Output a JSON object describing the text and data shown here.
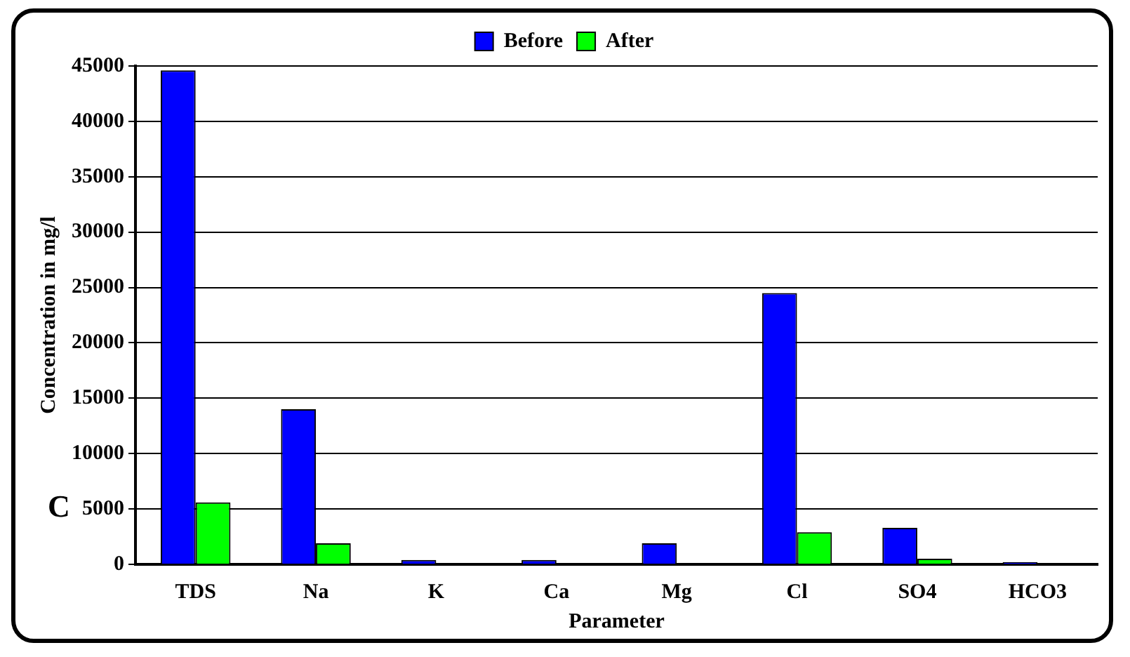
{
  "chart_data": {
    "type": "bar",
    "xlabel": "Parameter",
    "ylabel": "Concentration in mg/l",
    "annotations": [
      "C"
    ],
    "categories": [
      "TDS",
      "Na",
      "K",
      "Ca",
      "Mg",
      "Cl",
      "SO4",
      "HCO3"
    ],
    "series": [
      {
        "name": "Before",
        "color": "#0000ff",
        "values": [
          44600,
          14000,
          400,
          400,
          1900,
          24500,
          3300,
          200
        ]
      },
      {
        "name": "After",
        "color": "#00ff00",
        "values": [
          5600,
          1900,
          null,
          null,
          null,
          2900,
          500,
          null
        ]
      }
    ],
    "ylim": [
      0,
      45000
    ],
    "yticks": [
      0,
      5000,
      10000,
      15000,
      20000,
      25000,
      30000,
      35000,
      40000,
      45000
    ],
    "grid": "y",
    "legend": "top"
  }
}
